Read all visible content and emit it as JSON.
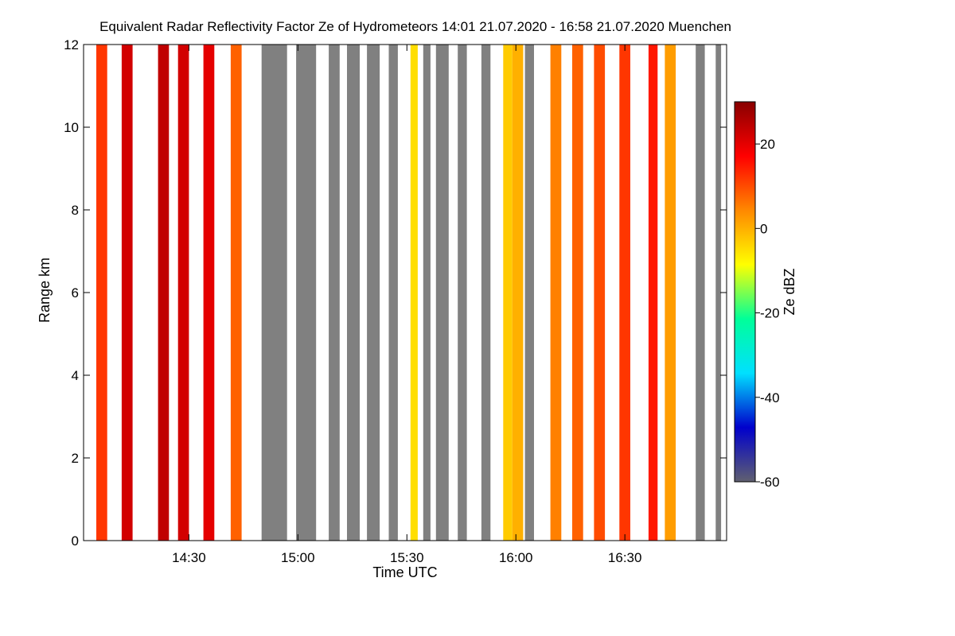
{
  "chart_data": {
    "type": "heatmap",
    "title": "Equivalent Radar Reflectivity Factor Ze of Hydrometeors   14:01 21.07.2020 - 16:58 21.07.2020 Muenchen",
    "xlabel": "Time UTC",
    "ylabel": "Range km",
    "x_range_min": [
      841,
      1018
    ],
    "y_range_km": [
      0,
      12
    ],
    "xticks": [
      {
        "minute": 870,
        "label": "14:30"
      },
      {
        "minute": 900,
        "label": "15:00"
      },
      {
        "minute": 930,
        "label": "15:30"
      },
      {
        "minute": 960,
        "label": "16:00"
      },
      {
        "minute": 990,
        "label": "16:30"
      }
    ],
    "yticks": [
      0,
      2,
      4,
      6,
      8,
      10,
      12
    ],
    "colorbar": {
      "label": "Ze dBZ",
      "range": [
        -60,
        30
      ],
      "ticks": [
        20,
        0,
        -20,
        -40,
        -60
      ],
      "colors": [
        "#606070",
        "#0000cc",
        "#00e0ff",
        "#00ff99",
        "#ffff00",
        "#ff8800",
        "#ff0000",
        "#880000"
      ]
    },
    "no_signal_color": "#808080",
    "profiles": [
      {
        "t0": 844.5,
        "t1": 847.5,
        "top": 12,
        "dbz": 12
      },
      {
        "t0": 851.5,
        "t1": 854.5,
        "top": 12,
        "dbz": 22
      },
      {
        "t0": 861.5,
        "t1": 864.5,
        "top": 12,
        "dbz": 24
      },
      {
        "t0": 867.0,
        "t1": 870.0,
        "top": 12,
        "dbz": 22
      },
      {
        "t0": 874.0,
        "t1": 877.0,
        "top": 12,
        "dbz": 20
      },
      {
        "t0": 881.5,
        "t1": 884.5,
        "top": 12,
        "dbz": 8
      },
      {
        "t0": 890.0,
        "t1": 897.0,
        "top": 12,
        "dbz": -55
      },
      {
        "t0": 899.5,
        "t1": 905.0,
        "top": 12,
        "dbz": -55
      },
      {
        "t0": 908.5,
        "t1": 911.5,
        "top": 12,
        "dbz": -55
      },
      {
        "t0": 913.5,
        "t1": 917.0,
        "top": 12,
        "dbz": -55
      },
      {
        "t0": 919.0,
        "t1": 922.5,
        "top": 12,
        "dbz": -55
      },
      {
        "t0": 925.0,
        "t1": 927.5,
        "top": 12,
        "dbz": -55
      },
      {
        "t0": 931.0,
        "t1": 933.0,
        "top": 12,
        "dbz": -5
      },
      {
        "t0": 934.5,
        "t1": 936.5,
        "top": 12,
        "dbz": -55
      },
      {
        "t0": 938.0,
        "t1": 941.5,
        "top": 12,
        "dbz": -55
      },
      {
        "t0": 944.0,
        "t1": 946.5,
        "top": 12,
        "dbz": -55
      },
      {
        "t0": 950.5,
        "t1": 953.0,
        "top": 12,
        "dbz": -55
      },
      {
        "t0": 956.5,
        "t1": 959.0,
        "top": 12,
        "dbz": -3
      },
      {
        "t0": 959.0,
        "t1": 962.0,
        "top": 12,
        "dbz": 0
      },
      {
        "t0": 962.5,
        "t1": 965.0,
        "top": 12,
        "dbz": -55
      },
      {
        "t0": 969.5,
        "t1": 972.5,
        "top": 12,
        "dbz": 5
      },
      {
        "t0": 975.5,
        "t1": 978.5,
        "top": 12,
        "dbz": 8
      },
      {
        "t0": 981.5,
        "t1": 984.5,
        "top": 12,
        "dbz": 10
      },
      {
        "t0": 988.5,
        "t1": 991.5,
        "top": 12,
        "dbz": 12
      },
      {
        "t0": 996.5,
        "t1": 999.0,
        "top": 12,
        "dbz": 15
      },
      {
        "t0": 1001.0,
        "t1": 1004.0,
        "top": 12,
        "dbz": 2
      },
      {
        "t0": 1009.5,
        "t1": 1012.0,
        "top": 12,
        "dbz": -55
      },
      {
        "t0": 1015.0,
        "t1": 1016.5,
        "top": 12,
        "dbz": -55
      }
    ]
  }
}
